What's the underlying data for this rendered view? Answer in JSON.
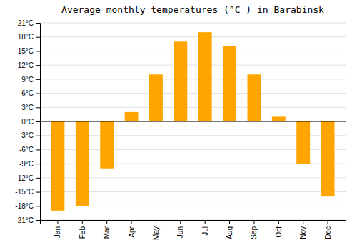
{
  "chart_data": {
    "type": "bar",
    "title": "Average monthly temperatures (°C ) in Barabinsk",
    "categories": [
      "Jan",
      "Feb",
      "Mar",
      "Apr",
      "May",
      "Jun",
      "Jul",
      "Aug",
      "Sep",
      "Oct",
      "Nov",
      "Dec"
    ],
    "values": [
      -19,
      -18,
      -10,
      2,
      10,
      17,
      19,
      16,
      10,
      1,
      -9,
      -16
    ],
    "color": "#FFA500",
    "ylim": [
      -21,
      21
    ],
    "yticks": [
      {
        "value": -21,
        "label": "-21°C"
      },
      {
        "value": -18,
        "label": "-18°C"
      },
      {
        "value": -15,
        "label": "-15°C"
      },
      {
        "value": -12,
        "label": "-12°C"
      },
      {
        "value": -9,
        "label": "-9°C"
      },
      {
        "value": -6,
        "label": "-6°C"
      },
      {
        "value": -3,
        "label": "-3°C"
      },
      {
        "value": 0,
        "label": "0°C"
      },
      {
        "value": 3,
        "label": "3°C"
      },
      {
        "value": 6,
        "label": "6°C"
      },
      {
        "value": 9,
        "label": "9°C"
      },
      {
        "value": 12,
        "label": "12°C"
      },
      {
        "value": 15,
        "label": "15°C"
      },
      {
        "value": 18,
        "label": "18°C"
      },
      {
        "value": 21,
        "label": "21°C"
      }
    ],
    "grid": true
  }
}
